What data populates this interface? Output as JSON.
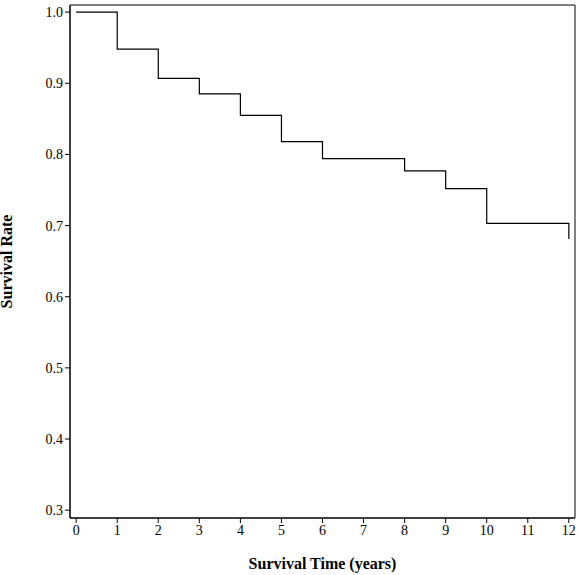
{
  "chart_data": {
    "type": "step",
    "x_label": "Survival Time (years)",
    "y_label": "Survival Rate",
    "x": [
      0,
      1,
      2,
      3,
      4,
      5,
      6,
      8,
      9,
      10,
      12
    ],
    "values": [
      1.0,
      0.948,
      0.907,
      0.885,
      0.855,
      0.818,
      0.794,
      0.777,
      0.752,
      0.703,
      0.681
    ],
    "color": "#000000",
    "xlim": [
      -0.15,
      12.15
    ],
    "ylim": [
      0.289,
      1.01
    ],
    "xticks": [
      0,
      1,
      2,
      3,
      4,
      5,
      6,
      7,
      8,
      9,
      10,
      11,
      12
    ],
    "yticks": [
      0.3,
      0.4,
      0.5,
      0.6,
      0.7,
      0.8,
      0.9,
      {
        "value": 1,
        "label": "1.0"
      }
    ]
  }
}
